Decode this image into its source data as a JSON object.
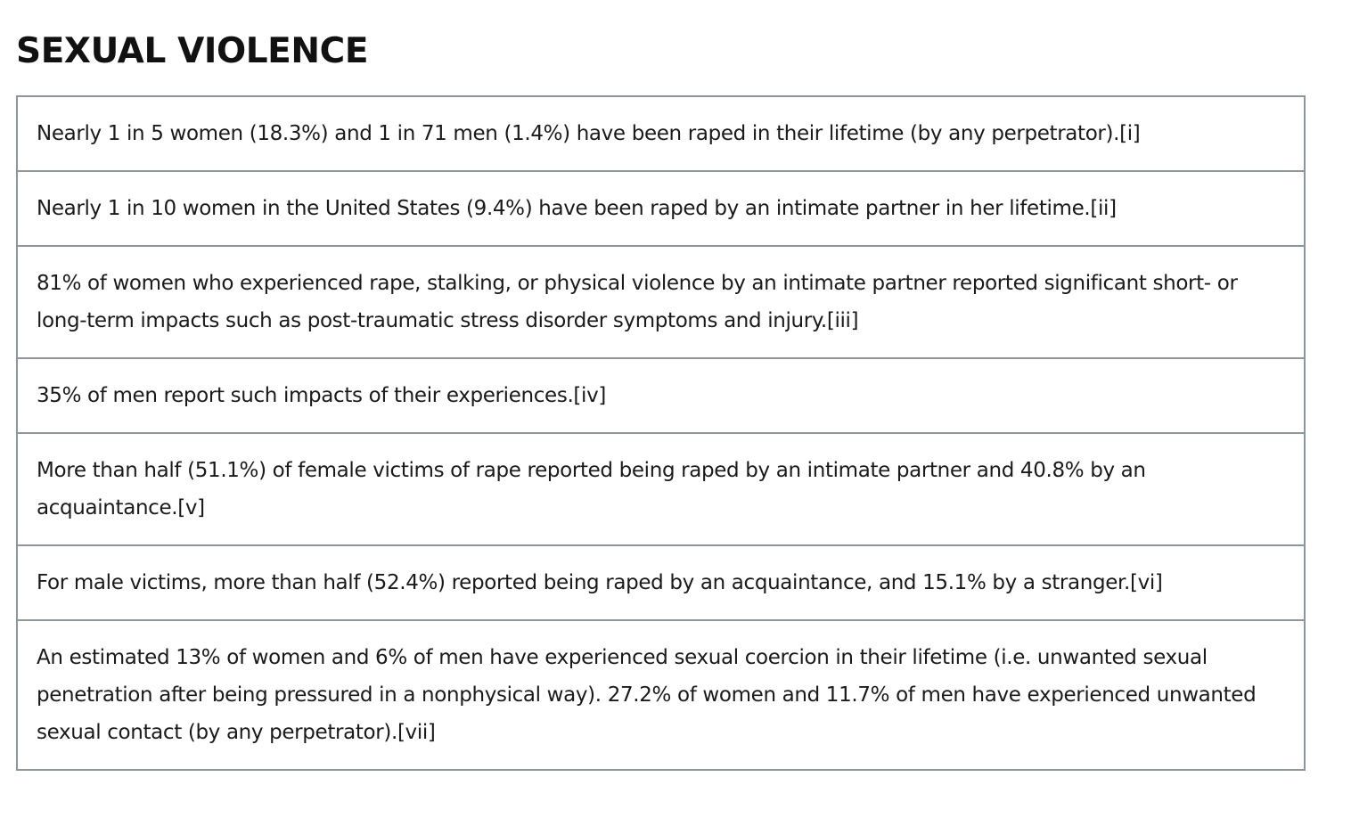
{
  "section": {
    "title": "SEXUAL VIOLENCE"
  },
  "stats": [
    {
      "text": "Nearly 1 in 5 women (18.3%) and 1 in 71 men (1.4%) have been raped in their lifetime (by any perpetrator).[i]"
    },
    {
      "text": "Nearly 1 in 10 women in the United States (9.4%) have been raped by an intimate partner in her lifetime.[ii]"
    },
    {
      "text": "81% of women who experienced rape, stalking, or physical violence by an intimate partner reported significant short- or long-term impacts such as post-traumatic stress disorder symptoms and injury.[iii]"
    },
    {
      "text": "35% of men report such impacts of their experiences.[iv]"
    },
    {
      "text": "More than half (51.1%) of female victims of rape reported being raped by an intimate partner and 40.8% by an acquaintance.[v]"
    },
    {
      "text": "For male victims, more than half (52.4%) reported being raped by an acquaintance, and 15.1% by a stranger.[vi]"
    },
    {
      "text": "An estimated 13% of women and 6% of men have experienced sexual coercion in their lifetime (i.e. unwanted sexual penetration after being pressured in a nonphysical way). 27.2% of women and 11.7% of men have experienced unwanted sexual contact (by any perpetrator).[vii]"
    }
  ]
}
